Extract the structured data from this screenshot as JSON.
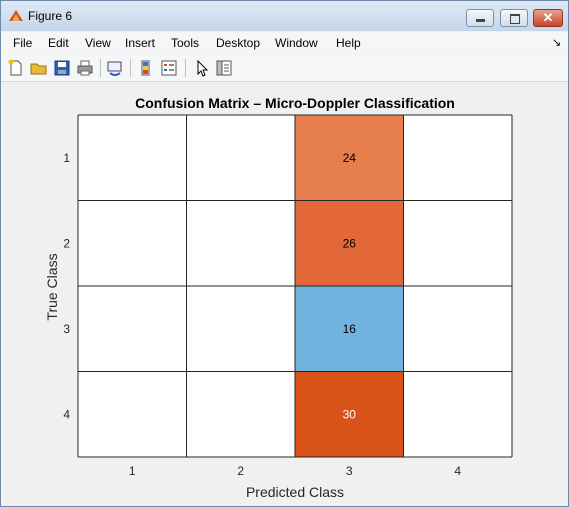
{
  "window": {
    "title": "Figure 6"
  },
  "menu": {
    "items": [
      "File",
      "Edit",
      "View",
      "Insert",
      "Tools",
      "Desktop",
      "Window",
      "Help"
    ]
  },
  "toolbar": {
    "icons": [
      "new-figure-icon",
      "open-file-icon",
      "save-icon",
      "print-icon",
      "link-plot-icon",
      "insert-colorbar-icon",
      "insert-legend-icon",
      "edit-plot-icon",
      "property-inspector-icon"
    ]
  },
  "chart_data": {
    "type": "heatmap",
    "title": "Confusion Matrix – Micro-Doppler Classification",
    "xlabel": "Predicted Class",
    "ylabel": "True Class",
    "x_categories": [
      "1",
      "2",
      "3",
      "4"
    ],
    "y_categories": [
      "1",
      "2",
      "3",
      "4"
    ],
    "cells": [
      {
        "true": "1",
        "predicted": "3",
        "value": 24,
        "color": "#e67e4e"
      },
      {
        "true": "2",
        "predicted": "3",
        "value": 26,
        "color": "#e2683a"
      },
      {
        "true": "3",
        "predicted": "3",
        "value": 16,
        "color": "#72b2de"
      },
      {
        "true": "4",
        "predicted": "3",
        "value": 30,
        "color": "#d95319"
      }
    ],
    "empty_cell_color": "#ffffff",
    "grid": true
  }
}
